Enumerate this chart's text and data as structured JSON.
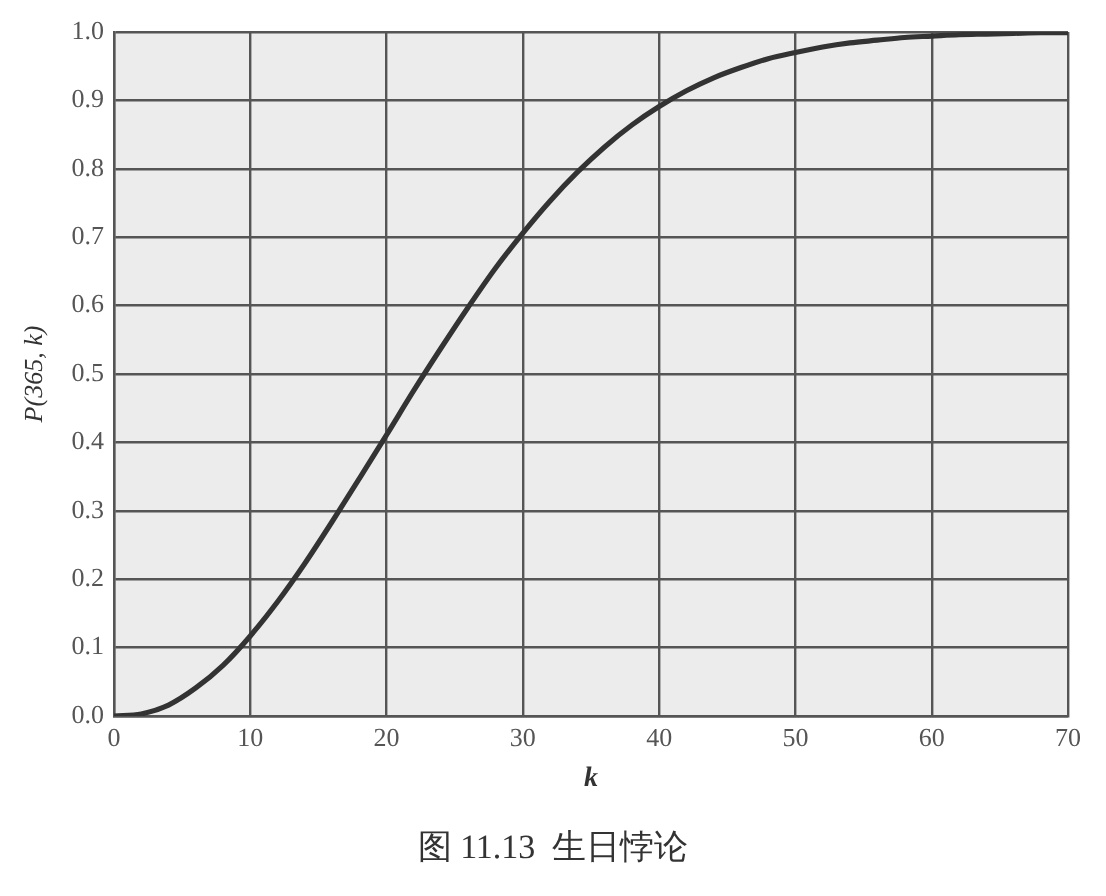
{
  "chart_data": {
    "type": "line",
    "xlabel": "k",
    "ylabel": "P(365, k)",
    "annotations": [
      "图 11.13  生日悖论"
    ],
    "x": [
      0,
      2,
      4,
      6,
      8,
      10,
      12,
      14,
      16,
      18,
      20,
      22,
      24,
      26,
      28,
      30,
      32,
      34,
      36,
      38,
      40,
      42,
      44,
      46,
      48,
      50,
      52,
      54,
      56,
      58,
      60,
      62,
      64,
      66,
      68,
      70
    ],
    "series": [
      {
        "color": "#333333",
        "values": [
          0,
          0.003,
          0.016,
          0.041,
          0.074,
          0.117,
          0.167,
          0.223,
          0.284,
          0.347,
          0.411,
          0.476,
          0.538,
          0.598,
          0.655,
          0.706,
          0.753,
          0.795,
          0.832,
          0.864,
          0.891,
          0.914,
          0.933,
          0.948,
          0.961,
          0.97,
          0.978,
          0.984,
          0.988,
          0.992,
          0.994,
          0.996,
          0.997,
          0.998,
          0.999,
          0.999
        ]
      }
    ],
    "xlim": [
      0,
      70
    ],
    "xticks": [
      0,
      10,
      20,
      30,
      40,
      50,
      60,
      70
    ],
    "ylim": [
      0,
      1
    ],
    "yticks": [
      {
        "value": 0,
        "label": "0.0"
      },
      0.1,
      0.2,
      0.3,
      0.4,
      0.5,
      0.6,
      0.7,
      0.8,
      0.9,
      {
        "value": 1,
        "label": "1.0"
      }
    ],
    "grid": true,
    "marker": "none",
    "line_style": "solid"
  }
}
